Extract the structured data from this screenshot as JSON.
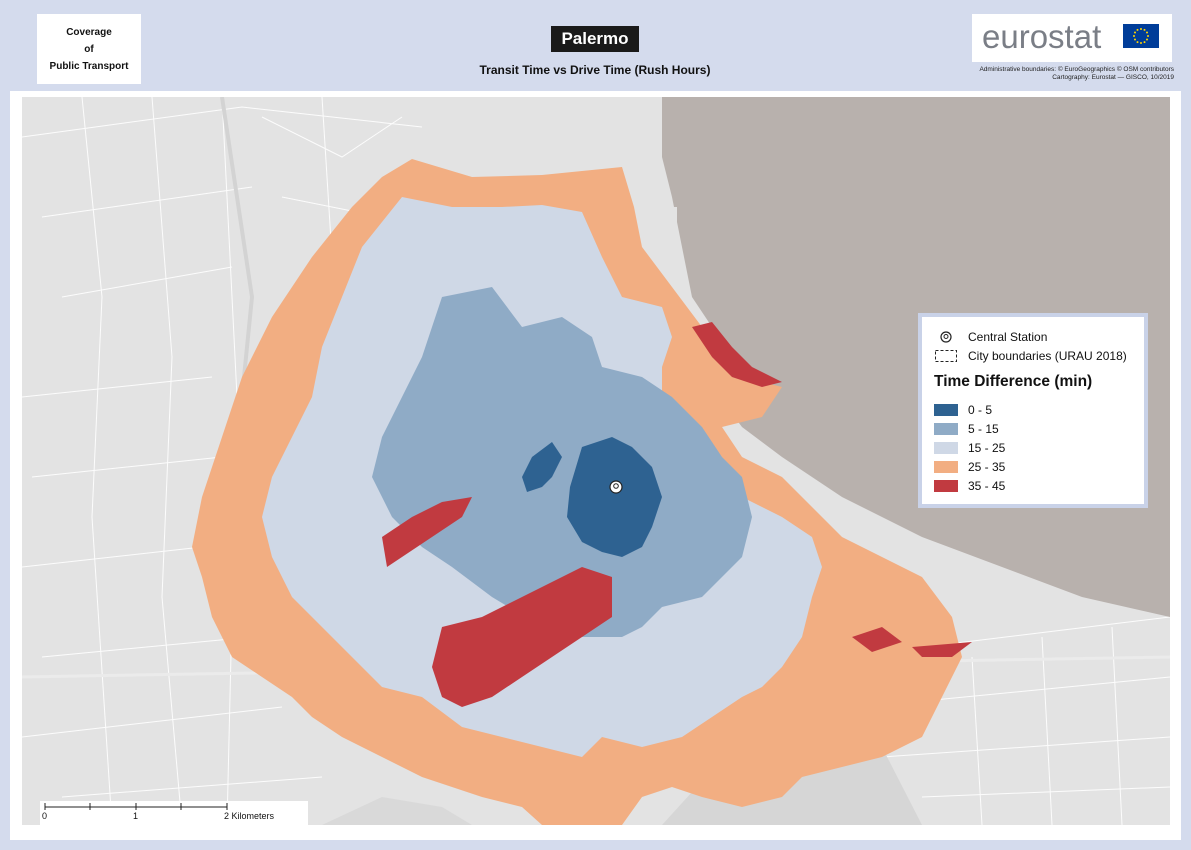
{
  "header": {
    "coverage_lines": [
      "Coverage",
      "of",
      "Public Transport"
    ],
    "city": "Palermo",
    "subtitle": "Transit Time vs Drive Time (Rush Hours)",
    "logo": "eurostat",
    "credits_line1": "Administrative boundaries: © EuroGeographics © OSM contributors",
    "credits_line2": "Cartography: Eurostat — GISCO, 10/2019"
  },
  "legend": {
    "central_station": "Central Station",
    "city_boundaries": "City boundaries (URAU 2018)",
    "title": "Time Difference (min)",
    "classes": [
      {
        "label": "0 - 5",
        "color": "#2e6291"
      },
      {
        "label": "5 - 15",
        "color": "#8fabc6"
      },
      {
        "label": "15 - 25",
        "color": "#cfd8e6"
      },
      {
        "label": "25 - 35",
        "color": "#f2ae82"
      },
      {
        "label": "35 - 45",
        "color": "#c13a40"
      }
    ]
  },
  "scale": {
    "labels": [
      "0",
      "1",
      "2 Kilometers"
    ]
  },
  "colors": {
    "sea": "#b8b1ad",
    "land": "#e3e3e3",
    "frame": "#d4dbed"
  }
}
